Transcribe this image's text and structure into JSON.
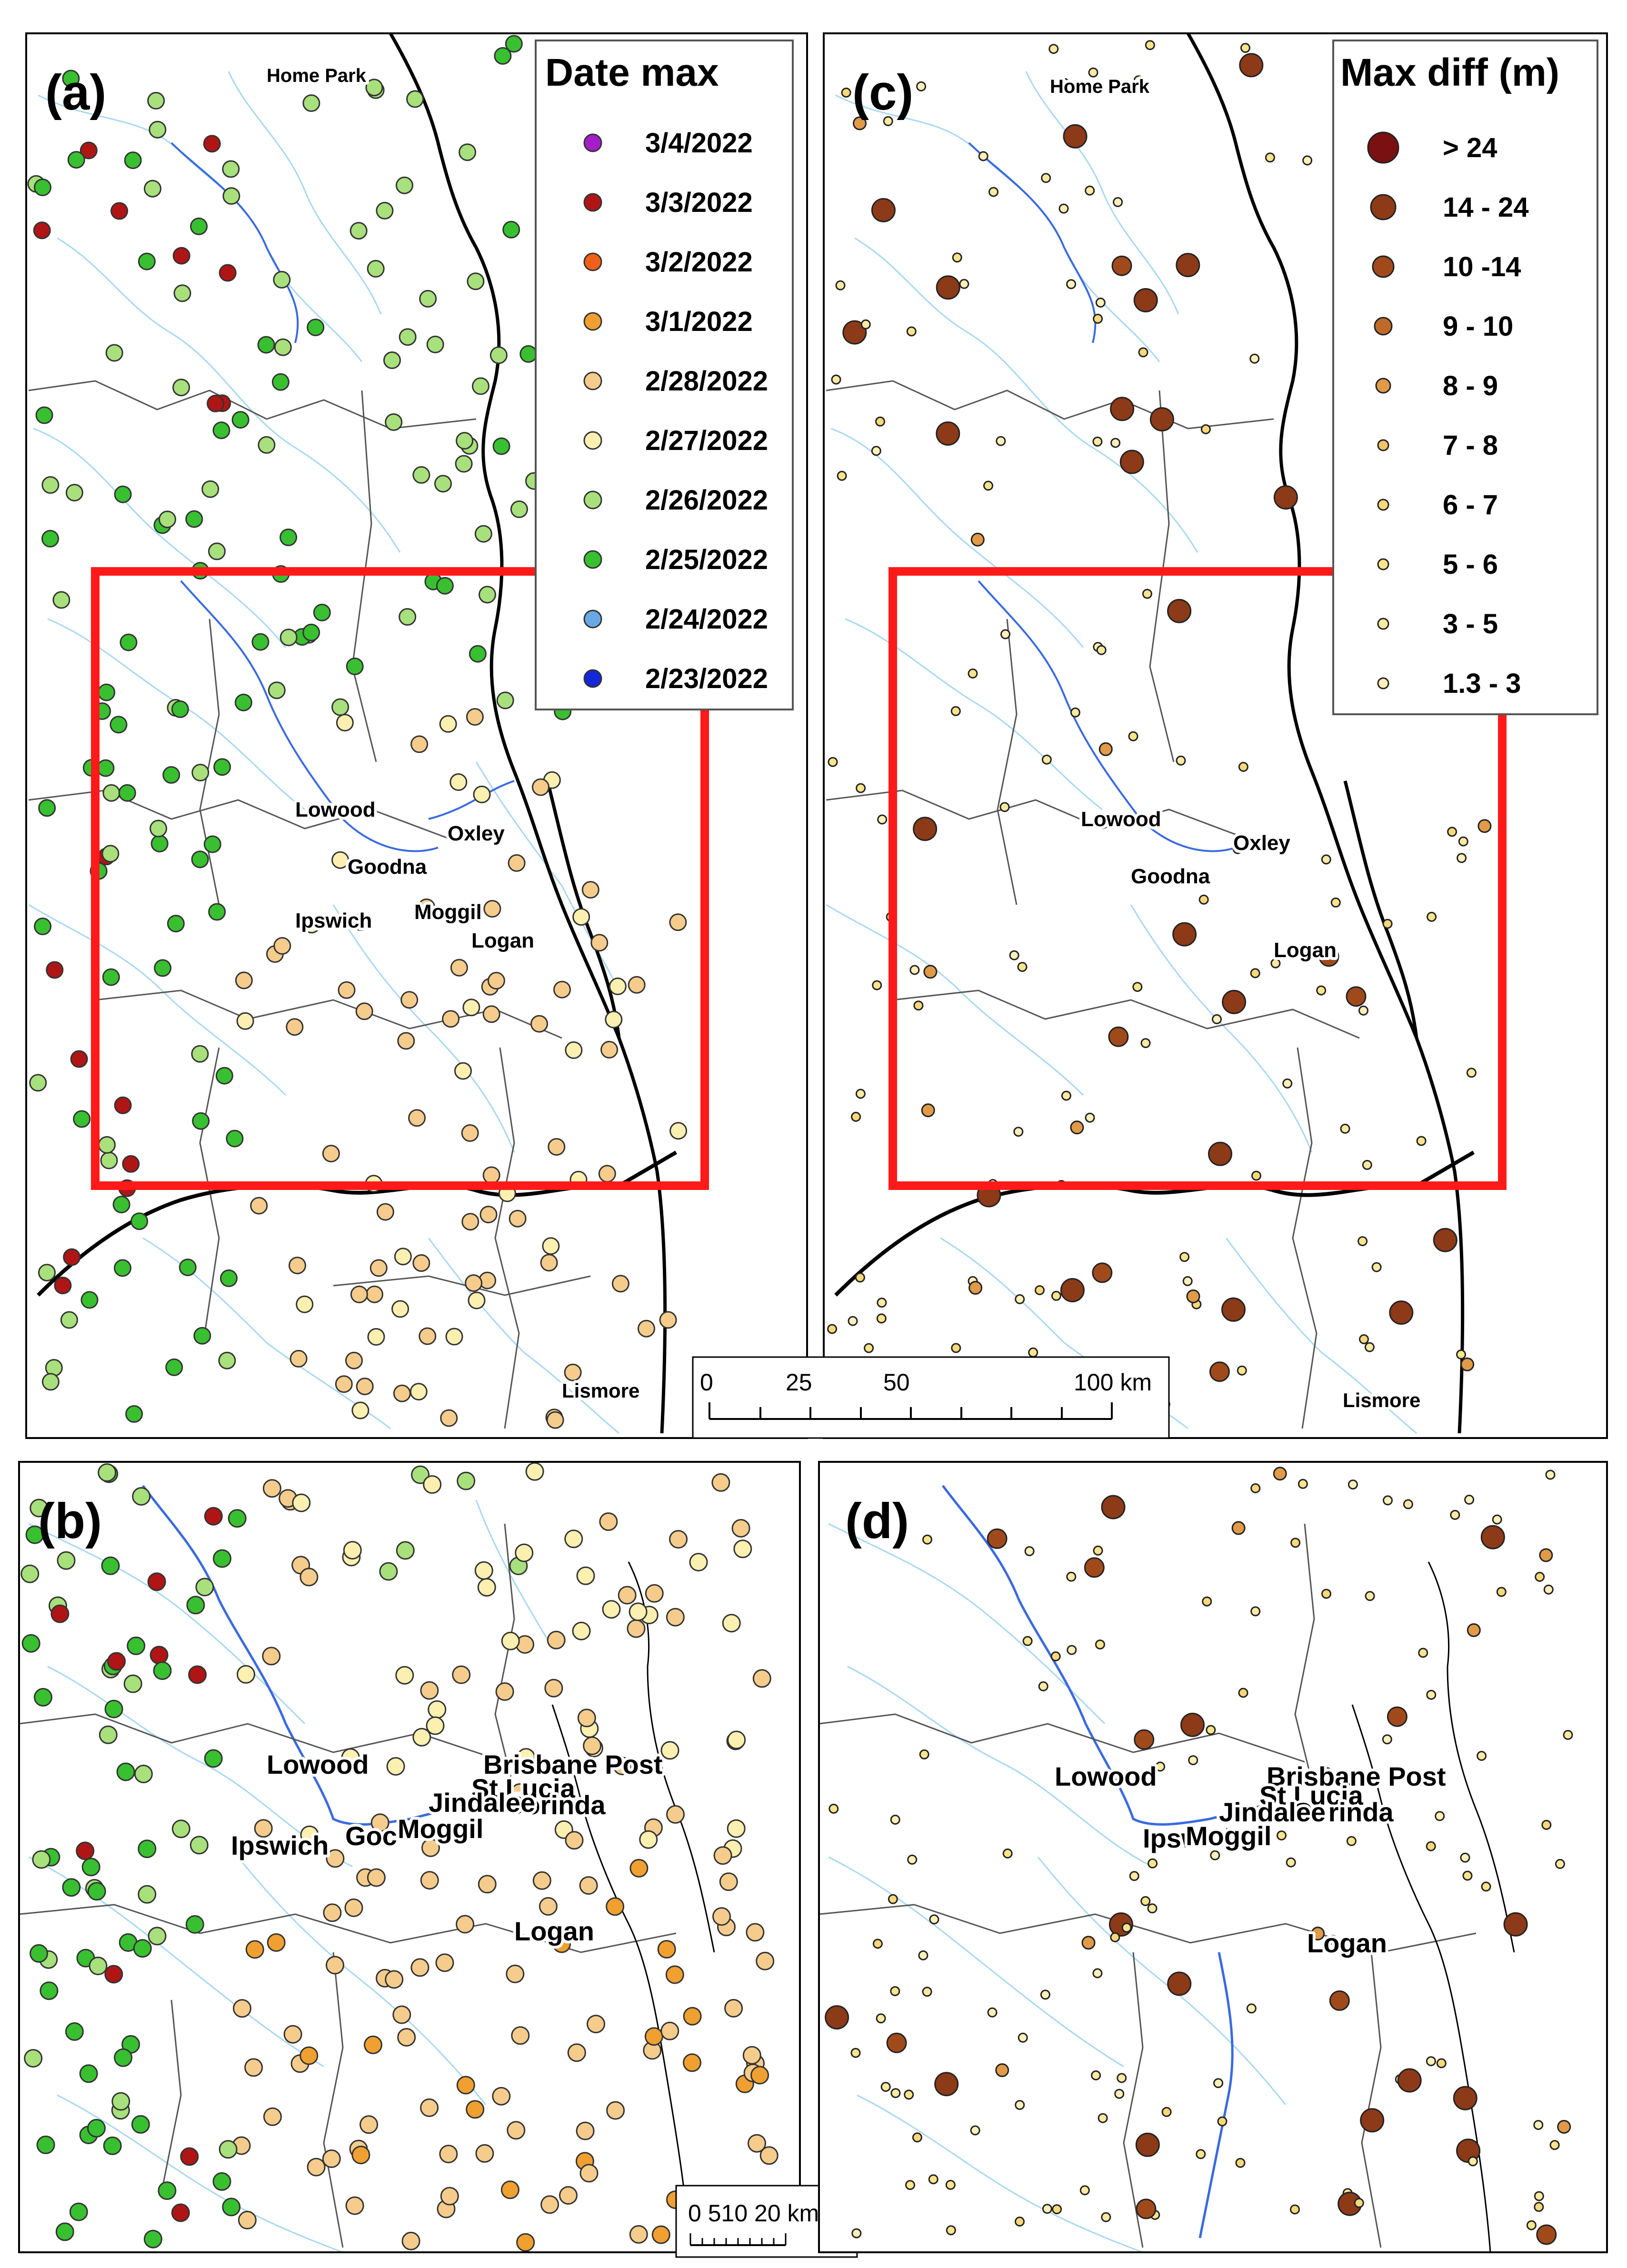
{
  "panels": {
    "a": {
      "label": "(a)"
    },
    "b": {
      "label": "(b)"
    },
    "c": {
      "label": "(c)"
    },
    "d": {
      "label": "(d)"
    }
  },
  "legend_date": {
    "title": "Date max",
    "items": [
      {
        "label": "3/4/2022",
        "color": "#a31fc9"
      },
      {
        "label": "3/3/2022",
        "color": "#b01515"
      },
      {
        "label": "3/2/2022",
        "color": "#f06018"
      },
      {
        "label": "3/1/2022",
        "color": "#f0a030"
      },
      {
        "label": "2/28/2022",
        "color": "#f5cc8c"
      },
      {
        "label": "2/27/2022",
        "color": "#fbf0b0"
      },
      {
        "label": "2/26/2022",
        "color": "#a8e07c"
      },
      {
        "label": "2/25/2022",
        "color": "#38c030"
      },
      {
        "label": "2/24/2022",
        "color": "#6aa8e4"
      },
      {
        "label": "2/23/2022",
        "color": "#1428d8"
      }
    ]
  },
  "legend_diff": {
    "title": "Max diff (m)",
    "items": [
      {
        "label": "> 24",
        "color": "#7a1010",
        "size": "xl"
      },
      {
        "label": "14 - 24",
        "color": "#8c3a18",
        "size": "l"
      },
      {
        "label": "10 -14",
        "color": "#a04a1c",
        "size": "ml"
      },
      {
        "label": "9 - 10",
        "color": "#c06a2a",
        "size": "m"
      },
      {
        "label": "8 - 9",
        "color": "#e09a48",
        "size": "ms"
      },
      {
        "label": "7 - 8",
        "color": "#f2c266",
        "size": "s"
      },
      {
        "label": "6 - 7",
        "color": "#f8d878",
        "size": "s"
      },
      {
        "label": "5 - 6",
        "color": "#fbe48a",
        "size": "s"
      },
      {
        "label": "3 - 5",
        "color": "#fde9a0",
        "size": "s"
      },
      {
        "label": "1.3 - 3",
        "color": "#fef0b8",
        "size": "s"
      }
    ]
  },
  "scalebar_large": {
    "ticks": [
      "0",
      "25",
      "50",
      "100 km"
    ]
  },
  "scalebar_small": {
    "ticks": "0 510  20 km"
  },
  "places": {
    "home_park": "Home Park",
    "lowood": "Lowood",
    "oxley": "Oxley",
    "goodna": "Goodna",
    "ipswich": "Ipswich",
    "moggil": "Moggil",
    "logan": "Logan",
    "lismore": "Lismore",
    "brisbane_post": "Brisbane Post",
    "st_lucia": "St Lucia",
    "jindalee": "Jindalee",
    "corinda": "Corinda",
    "goodna_short": "Goc"
  },
  "colors": {
    "river": "#9fd4f0",
    "river_main": "#2a4fd8",
    "frame_red": "#ff1a1a",
    "coast": "#000000"
  }
}
